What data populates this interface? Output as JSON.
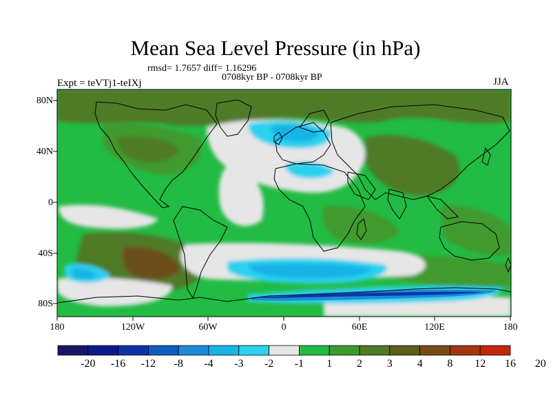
{
  "title": "Mean Sea Level Pressure (in hPa)",
  "stats": "rmsd= 1.7657  diff= 1.16296",
  "period": "0708kyr BP - 0708kyr BP",
  "experiment": "Expt = teVTj1-teIXj",
  "season": "JJA",
  "axes": {
    "lat_labels": [
      "80N",
      "40N",
      "0",
      "40S",
      "80S"
    ],
    "lon_labels": [
      "180",
      "120W",
      "60W",
      "0",
      "60E",
      "120E",
      "180"
    ]
  },
  "colorbar": {
    "labels": [
      "-20",
      "-16",
      "-12",
      "-8",
      "-4",
      "-3",
      "-2",
      "-1",
      "1",
      "2",
      "3",
      "4",
      "8",
      "12",
      "16",
      "20"
    ],
    "colors": [
      "#1a1466",
      "#0d1a8c",
      "#0e34a6",
      "#0d5cbf",
      "#1a8cd9",
      "#19b4e6",
      "#2cd2ee",
      "#e6e6e6",
      "#22bb44",
      "#3f9a2d",
      "#4f7a26",
      "#5b5e1c",
      "#7a4a14",
      "#a33610",
      "#c2260a"
    ]
  },
  "palette": {
    "white": "#e6e6e6",
    "green": "#22bb44",
    "dkgreen": "#3f9a2d",
    "olive": "#4f7a26",
    "brown": "#6a4f1a",
    "lightcyan": "#2cd2ee",
    "cyan": "#19b4e6",
    "blue": "#1a8cd9",
    "navy": "#0e34a6"
  }
}
